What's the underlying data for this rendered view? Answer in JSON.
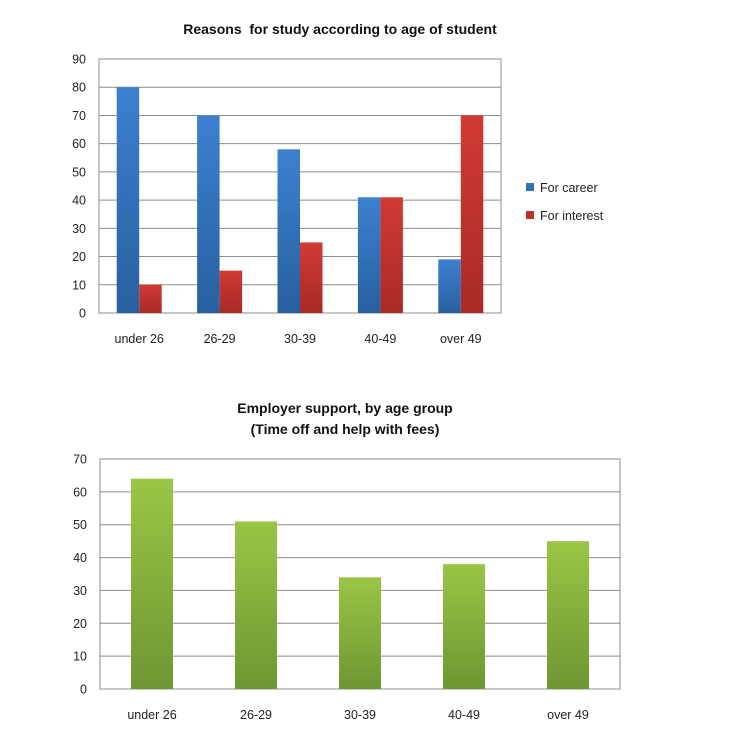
{
  "chart_data": [
    {
      "type": "bar",
      "title": "Reasons  for study according to age of student",
      "categories": [
        "under 26",
        "26-29",
        "30-39",
        "40-49",
        "over 49"
      ],
      "series": [
        {
          "name": "For career",
          "values": [
            80,
            70,
            58,
            41,
            19
          ],
          "color": "#2f6fbd"
        },
        {
          "name": "For interest",
          "values": [
            10,
            15,
            25,
            41,
            70
          ],
          "color": "#c0302c"
        }
      ],
      "ylim": [
        0,
        90
      ],
      "yticks": [
        0,
        10,
        20,
        30,
        40,
        50,
        60,
        70,
        80,
        90
      ],
      "grid": true,
      "legend": "right"
    },
    {
      "type": "bar",
      "title": "Employer support, by age group",
      "subtitle": "(Time off and help with fees)",
      "categories": [
        "under 26",
        "26-29",
        "30-39",
        "40-49",
        "over 49"
      ],
      "series": [
        {
          "values": [
            64,
            51,
            34,
            38,
            45
          ],
          "color": "#7fa83a"
        }
      ],
      "ylim": [
        0,
        70
      ],
      "yticks": [
        0,
        10,
        20,
        30,
        40,
        50,
        60,
        70
      ],
      "grid": true
    }
  ]
}
